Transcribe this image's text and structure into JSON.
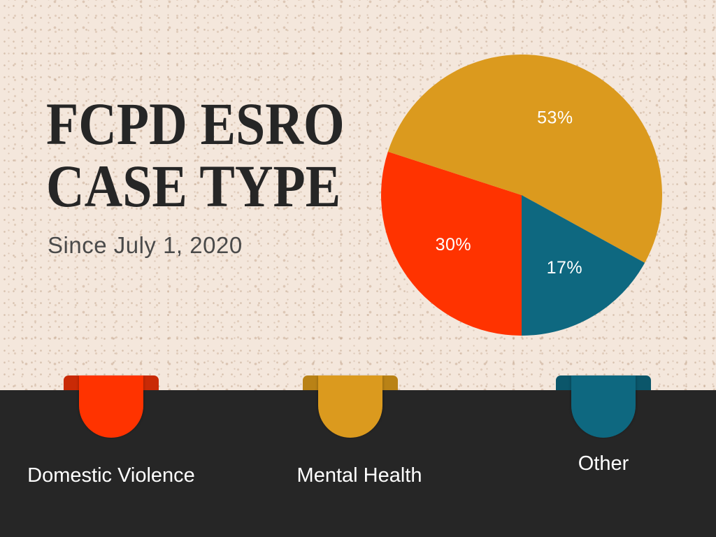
{
  "chart_data": {
    "type": "pie",
    "title_lines": [
      "FCPD ESRO",
      "CASE TYPE"
    ],
    "subtitle": "Since July 1, 2020",
    "categories": [
      "Domestic Violence",
      "Mental Health",
      "Other"
    ],
    "values": [
      30,
      53,
      17
    ],
    "data_labels": [
      "30%",
      "53%",
      "17%"
    ],
    "colors": [
      "#FF3300",
      "#DB9A1E",
      "#0E6880"
    ],
    "legend_placement": "bottom"
  },
  "theme": {
    "background": "#F4E7DC",
    "band": "#262626",
    "title_color": "#262626",
    "subtitle_color": "#4A4A4A",
    "label_color": "#FFFFFF",
    "tab_shade_colors": [
      "#C92A06",
      "#B98216",
      "#0B566A"
    ]
  }
}
